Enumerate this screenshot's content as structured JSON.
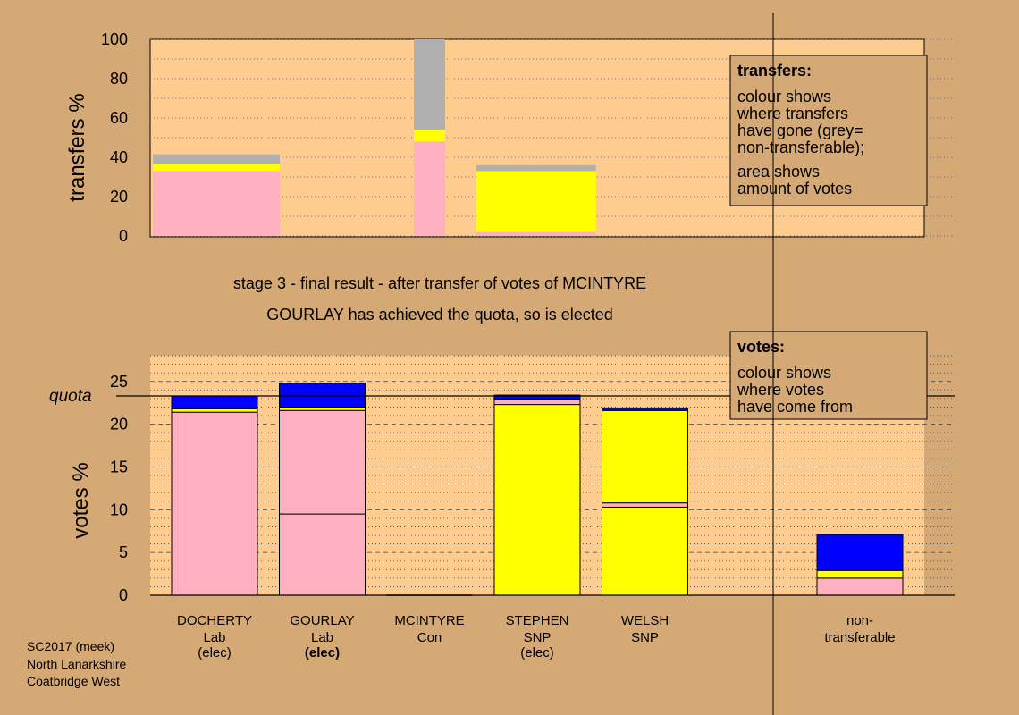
{
  "colors": {
    "background": "#d4a976",
    "panel": "#ffcc8f",
    "Lab": "#ffb0c0",
    "SNP": "#ffff00",
    "Con": "#0000ff",
    "non_transferable": "#b0b0b0"
  },
  "heading": {
    "stage": "stage 3 - final result - after transfer of votes of MCINTYRE",
    "status": "GOURLAY has achieved the quota, so is elected"
  },
  "legend_transfers": {
    "title": "transfers:",
    "lines": [
      "colour shows",
      "where transfers",
      "have gone (grey=",
      "non-transferable);",
      "area shows",
      "amount of votes"
    ]
  },
  "legend_votes": {
    "title": "votes:",
    "lines": [
      "colour shows",
      "where votes",
      "have come from"
    ]
  },
  "footer": {
    "lines": [
      "SC2017 (meek)",
      "North Lanarkshire",
      "Coatbridge West"
    ]
  },
  "chart_data": [
    {
      "type": "bar",
      "stacked": true,
      "ylabel": "transfers %",
      "ylim": [
        0,
        100
      ],
      "yticks": [
        0,
        20,
        40,
        60,
        80,
        100
      ],
      "segment_colors": [
        "Lab",
        "SNP",
        "non_transferable"
      ],
      "bars": [
        {
          "position": 0,
          "segments": [
            33,
            3.5,
            5
          ]
        },
        {
          "position": 2,
          "segments": [
            48,
            6,
            46
          ]
        },
        {
          "position": 3,
          "segments": [
            2,
            31,
            3
          ]
        }
      ]
    },
    {
      "type": "bar",
      "stacked": true,
      "ylabel": "votes %",
      "ylim": [
        0,
        28
      ],
      "yticks": [
        0,
        5,
        10,
        15,
        20,
        25
      ],
      "quota": 23.3,
      "quota_label": "quota",
      "categories": [
        {
          "name": "DOCHERTY",
          "party": "Lab",
          "status": "(elec)",
          "status_bold": false
        },
        {
          "name": "GOURLAY",
          "party": "Lab",
          "status": "(elec)",
          "status_bold": true
        },
        {
          "name": "MCINTYRE",
          "party": "Con",
          "status": "",
          "status_bold": false
        },
        {
          "name": "STEPHEN",
          "party": "SNP",
          "status": "(elec)",
          "status_bold": false
        },
        {
          "name": "WELSH",
          "party": "SNP",
          "status": "",
          "status_bold": false
        },
        {
          "name": "non-",
          "party": "transferable",
          "status": "",
          "status_bold": false
        }
      ],
      "bars": [
        {
          "segments": [
            [
              "Lab",
              21.4
            ],
            [
              "SNP",
              0.4
            ],
            [
              "Con",
              1.5
            ]
          ]
        },
        {
          "segments": [
            [
              "Lab",
              9.5
            ],
            [
              "Lab",
              12.1
            ],
            [
              "SNP",
              0.4
            ],
            [
              "Con",
              2.8
            ]
          ]
        },
        {
          "segments": []
        },
        {
          "segments": [
            [
              "SNP",
              22.3
            ],
            [
              "Lab",
              0.6
            ],
            [
              "Con",
              0.5
            ]
          ]
        },
        {
          "segments": [
            [
              "SNP",
              10.3
            ],
            [
              "Lab",
              0.5
            ],
            [
              "SNP",
              10.8
            ],
            [
              "Con",
              0.3
            ]
          ]
        },
        {
          "segments": [
            [
              "Lab",
              2.0
            ],
            [
              "SNP",
              0.9
            ],
            [
              "Con",
              4.2
            ]
          ]
        }
      ]
    }
  ]
}
